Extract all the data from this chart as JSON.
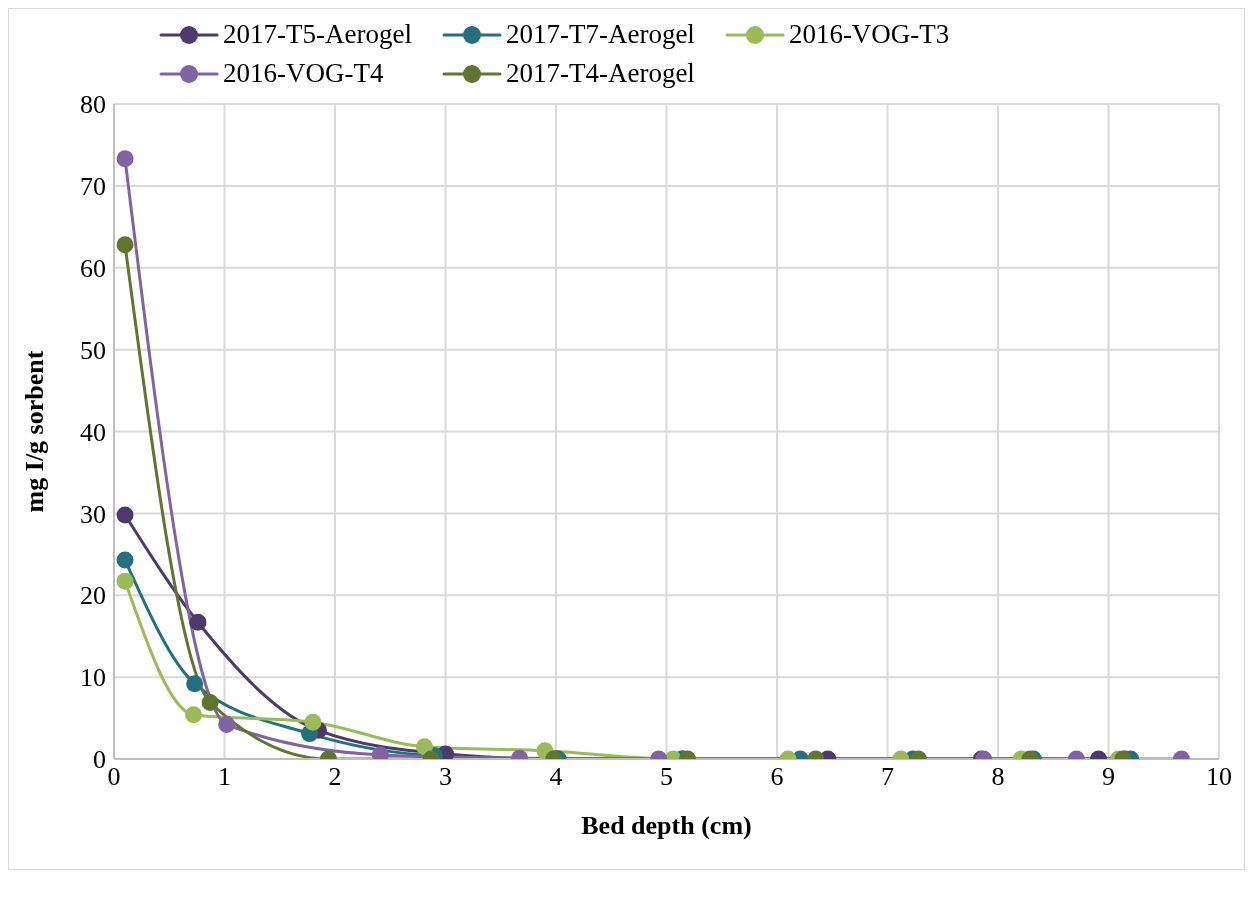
{
  "chart_data": {
    "type": "line",
    "xlabel": "Bed depth (cm)",
    "ylabel": "mg I/g sorbent",
    "xlim": [
      0,
      10
    ],
    "xticks": [
      0,
      1,
      2,
      3,
      4,
      5,
      6,
      7,
      8,
      9,
      10
    ],
    "ylim": [
      0,
      80
    ],
    "yticks": [
      0,
      10,
      20,
      30,
      40,
      50,
      60,
      70,
      80
    ],
    "grid": true,
    "legend": "top",
    "marker": "circle",
    "line_style": "solid",
    "series": [
      {
        "name": "2017-T5-Aerogel",
        "color": "#4d3a6b",
        "x": [
          0.1,
          0.76,
          1.85,
          3.0,
          4.0,
          5.15,
          6.46,
          7.85,
          8.91,
          9.15
        ],
        "values": [
          29.8,
          16.7,
          3.5,
          0.6,
          0,
          0,
          0,
          0,
          0,
          0
        ]
      },
      {
        "name": "2017-T7-Aerogel",
        "color": "#256f7e",
        "x": [
          0.1,
          0.73,
          1.77,
          2.9,
          4.02,
          5.14,
          6.21,
          7.23,
          8.32,
          9.2
        ],
        "values": [
          24.3,
          9.2,
          3.1,
          0.4,
          0,
          0,
          0,
          0,
          0,
          0
        ]
      },
      {
        "name": "2016-VOG-T3",
        "color": "#9bbb59",
        "x": [
          0.1,
          0.72,
          1.8,
          2.81,
          3.9,
          5.06,
          6.1,
          7.12,
          8.21,
          9.09
        ],
        "values": [
          21.7,
          5.4,
          4.5,
          1.5,
          1.0,
          0,
          0,
          0,
          0,
          0
        ]
      },
      {
        "name": "2016-VOG-T4",
        "color": "#8064a2",
        "x": [
          0.1,
          1.02,
          2.41,
          3.67,
          4.93,
          7.87,
          8.71,
          9.66
        ],
        "values": [
          73.3,
          4.2,
          0.5,
          0.1,
          0,
          0,
          0,
          0
        ]
      },
      {
        "name": "2017-T4-Aerogel",
        "color": "#5f7530",
        "x": [
          0.1,
          0.87,
          1.94,
          2.87,
          3.98,
          5.19,
          6.35,
          7.28,
          8.29,
          9.13
        ],
        "values": [
          62.8,
          6.9,
          0,
          0,
          0,
          0,
          0,
          0,
          0,
          0
        ]
      }
    ]
  }
}
